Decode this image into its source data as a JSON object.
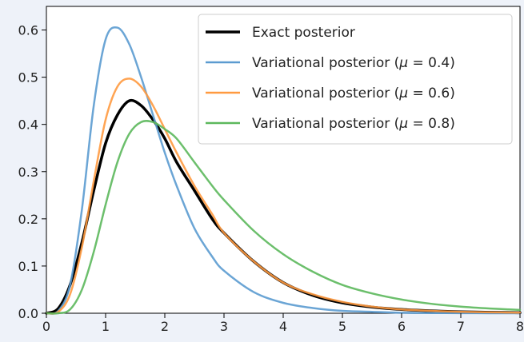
{
  "chart_data": {
    "type": "line",
    "title": "",
    "xlabel": "",
    "ylabel": "",
    "xlim": [
      0,
      8
    ],
    "ylim": [
      0,
      0.65
    ],
    "x_ticks": [
      0,
      1,
      2,
      3,
      4,
      5,
      6,
      7,
      8
    ],
    "y_ticks": [
      0.0,
      0.1,
      0.2,
      0.3,
      0.4,
      0.5,
      0.6
    ],
    "x_tick_labels": [
      "0",
      "1",
      "2",
      "3",
      "4",
      "5",
      "6",
      "7",
      "8"
    ],
    "y_tick_labels": [
      "0.0",
      "0.1",
      "0.2",
      "0.3",
      "0.4",
      "0.5",
      "0.6"
    ],
    "grid": false,
    "legend_position": "top-right",
    "x": [
      0,
      0.2,
      0.4,
      0.6,
      0.8,
      1.0,
      1.2,
      1.4,
      1.6,
      1.8,
      2.0,
      2.2,
      2.5,
      2.8,
      3.0,
      3.5,
      4.0,
      4.5,
      5.0,
      5.5,
      6.0,
      6.5,
      7.0,
      7.5,
      8.0
    ],
    "series": [
      {
        "name": "Exact posterior",
        "color": "#000000",
        "width": 3.5,
        "values": [
          0,
          0.01,
          0.06,
          0.15,
          0.26,
          0.36,
          0.42,
          0.45,
          0.44,
          0.41,
          0.37,
          0.32,
          0.26,
          0.2,
          0.17,
          0.11,
          0.065,
          0.038,
          0.022,
          0.013,
          0.008,
          0.005,
          0.003,
          0.002,
          0.001
        ]
      },
      {
        "name": "Variational posterior (μ = 0.4)",
        "legend_prefix": "Variational posterior (",
        "legend_mu": "μ",
        "legend_suffix": " = 0.4)",
        "color": "#5b9bd0",
        "width": 2.5,
        "values": [
          0,
          0.005,
          0.06,
          0.22,
          0.44,
          0.58,
          0.605,
          0.57,
          0.5,
          0.42,
          0.34,
          0.27,
          0.18,
          0.12,
          0.09,
          0.045,
          0.022,
          0.011,
          0.005,
          0.003,
          0.001,
          0.0005,
          0.0002,
          0.0001,
          0
        ]
      },
      {
        "name": "Variational posterior (μ = 0.6)",
        "legend_prefix": "Variational posterior (",
        "legend_mu": "μ",
        "legend_suffix": " = 0.6)",
        "color": "#ff9a40",
        "width": 2.5,
        "values": [
          0,
          0.003,
          0.04,
          0.14,
          0.28,
          0.41,
          0.48,
          0.497,
          0.48,
          0.44,
          0.39,
          0.34,
          0.27,
          0.21,
          0.17,
          0.11,
          0.065,
          0.04,
          0.024,
          0.014,
          0.008,
          0.005,
          0.003,
          0.002,
          0.001
        ]
      },
      {
        "name": "Variational posterior (μ = 0.8)",
        "legend_prefix": "Variational posterior (",
        "legend_mu": "μ",
        "legend_suffix": " = 0.8)",
        "color": "#5cb85c",
        "width": 2.5,
        "values": [
          0,
          0.0,
          0.008,
          0.05,
          0.13,
          0.23,
          0.32,
          0.38,
          0.405,
          0.405,
          0.39,
          0.37,
          0.32,
          0.27,
          0.24,
          0.175,
          0.125,
          0.088,
          0.06,
          0.042,
          0.029,
          0.02,
          0.014,
          0.01,
          0.007
        ]
      }
    ]
  }
}
